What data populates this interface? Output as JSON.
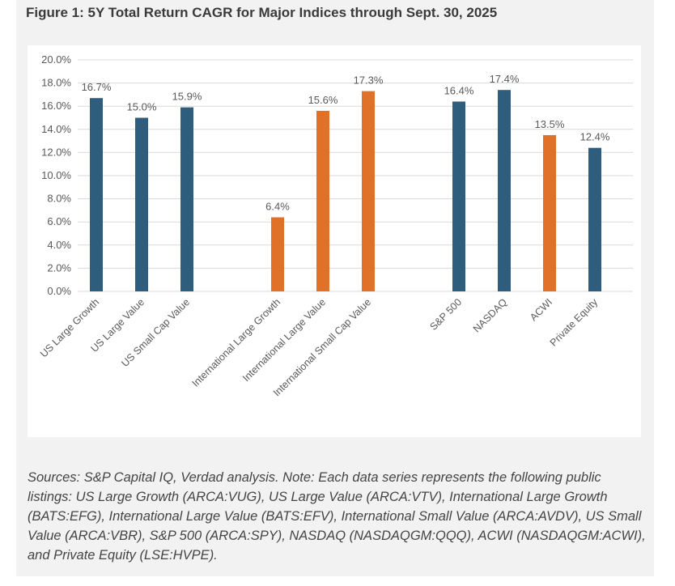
{
  "figure": {
    "title": "Figure 1: 5Y Total Return CAGR for Major Indices through Sept. 30, 2025",
    "caption": "Sources: S&P Capital IQ, Verdad analysis. Note: Each data series represents the following public listings: US Large Growth (ARCA:VUG), US Large Value (ARCA:VTV), International Large Growth (BATS:EFG), International Large Value (BATS:EFV), International Small Value (ARCA:AVDV), US Small Value (ARCA:VBR), S&P 500 (ARCA:SPY), NASDAQ (NASDAQGM:QQQ), ACWI (NASDAQGM:ACWI), and Private Equity (LSE:HVPE)."
  },
  "chart_data": {
    "type": "bar",
    "title": "Figure 1: 5Y Total Return CAGR for Major Indices through Sept. 30, 2025",
    "xlabel": "",
    "ylabel": "",
    "ylim": [
      0,
      20
    ],
    "yticks": [
      "0.0%",
      "2.0%",
      "4.0%",
      "6.0%",
      "8.0%",
      "10.0%",
      "12.0%",
      "14.0%",
      "16.0%",
      "18.0%",
      "20.0%"
    ],
    "grid": true,
    "legend": "none",
    "colors": {
      "blue": "#2e5d7e",
      "orange": "#e07127"
    },
    "bars": [
      {
        "category": "US Large Growth",
        "value": 16.7,
        "label": "16.7%",
        "color": "#2e5d7e"
      },
      {
        "category": "US Large Value",
        "value": 15.0,
        "label": "15.0%",
        "color": "#2e5d7e"
      },
      {
        "category": "US Small Cap Value",
        "value": 15.9,
        "label": "15.9%",
        "color": "#2e5d7e"
      },
      {
        "category": "International Large Growth",
        "value": 6.4,
        "label": "6.4%",
        "color": "#e07127"
      },
      {
        "category": "International Large Value",
        "value": 15.6,
        "label": "15.6%",
        "color": "#e07127"
      },
      {
        "category": "International Small Cap Value",
        "value": 17.3,
        "label": "17.3%",
        "color": "#e07127"
      },
      {
        "category": "S&P 500",
        "value": 16.4,
        "label": "16.4%",
        "color": "#2e5d7e"
      },
      {
        "category": "NASDAQ",
        "value": 17.4,
        "label": "17.4%",
        "color": "#2e5d7e"
      },
      {
        "category": "ACWI",
        "value": 13.5,
        "label": "13.5%",
        "color": "#e07127"
      },
      {
        "category": "Private Equity",
        "value": 12.4,
        "label": "12.4%",
        "color": "#2e5d7e"
      }
    ]
  }
}
